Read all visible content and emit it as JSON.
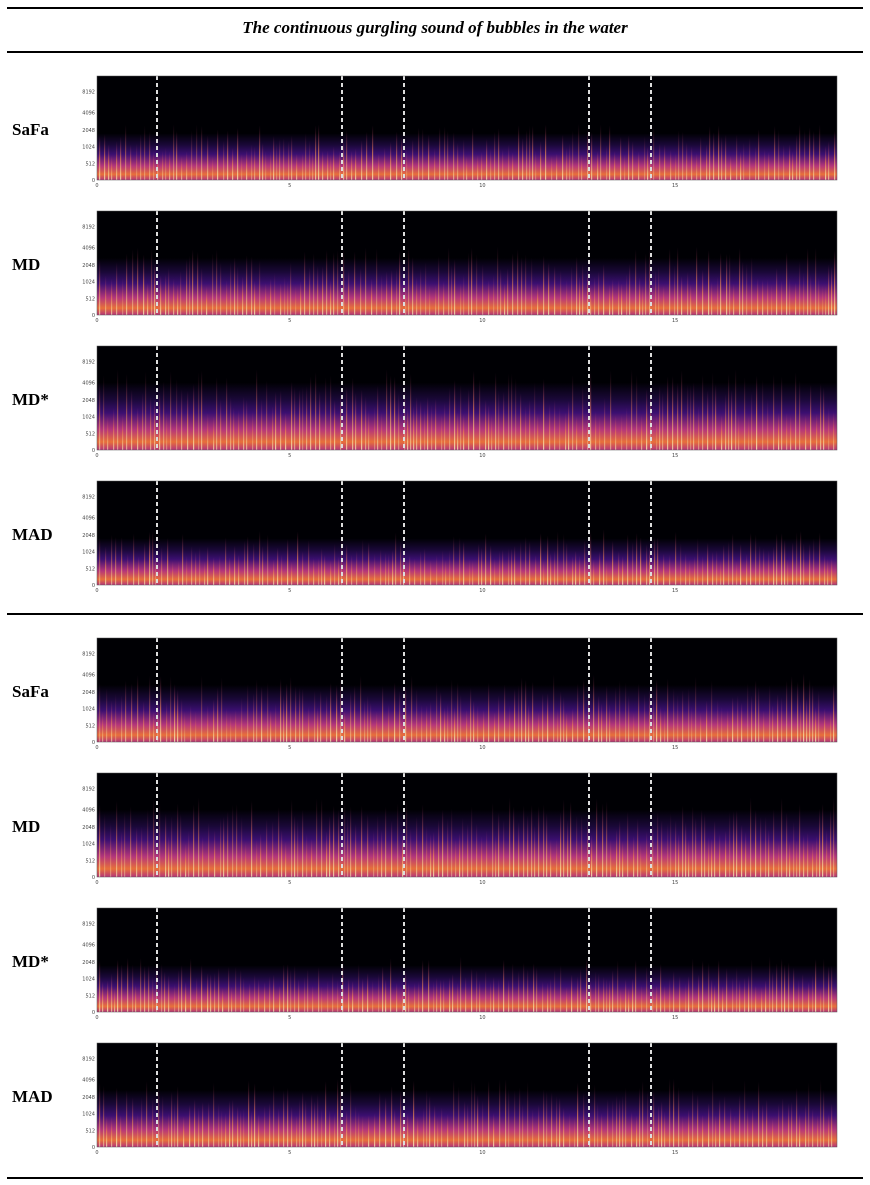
{
  "title": "The continuous gurgling sound of bubbles in the water",
  "rows": [
    {
      "label": "SaFa",
      "y_ticks": [
        "0",
        "512",
        "1024",
        "2048",
        "4096",
        "8192"
      ],
      "x_ticks": [
        "0",
        "5",
        "10",
        "15"
      ]
    },
    {
      "label": "MD",
      "y_ticks": [
        "0",
        "512",
        "1024",
        "2048",
        "4096",
        "8192"
      ],
      "x_ticks": [
        "0",
        "5",
        "10",
        "15"
      ]
    },
    {
      "label": "MD*",
      "y_ticks": [
        "0",
        "512",
        "1024",
        "2048",
        "4096",
        "8192"
      ],
      "x_ticks": [
        "0",
        "5",
        "10",
        "15"
      ]
    },
    {
      "label": "MAD",
      "y_ticks": [
        "0",
        "512",
        "1024",
        "2048",
        "4096",
        "8192"
      ],
      "x_ticks": [
        "0",
        "5",
        "10",
        "15"
      ]
    },
    {
      "label": "SaFa",
      "y_ticks": [
        "0",
        "512",
        "1024",
        "2048",
        "4096",
        "8192"
      ],
      "x_ticks": [
        "0",
        "5",
        "10",
        "15"
      ]
    },
    {
      "label": "MD",
      "y_ticks": [
        "0",
        "512",
        "1024",
        "2048",
        "4096",
        "8192"
      ],
      "x_ticks": [
        "0",
        "5",
        "10",
        "15"
      ]
    },
    {
      "label": "MD*",
      "y_ticks": [
        "0",
        "512",
        "1024",
        "2048",
        "4096",
        "8192"
      ],
      "x_ticks": [
        "0",
        "5",
        "10",
        "15"
      ]
    },
    {
      "label": "MAD",
      "y_ticks": [
        "0",
        "512",
        "1024",
        "2048",
        "4096",
        "8192"
      ],
      "x_ticks": [
        "0",
        "5",
        "10",
        "15"
      ]
    }
  ],
  "colors": {
    "background": "#000004",
    "low": "#3b0f70",
    "mid": "#b5367a",
    "high": "#fcfdbf",
    "segment_line": "#dddddd"
  }
}
